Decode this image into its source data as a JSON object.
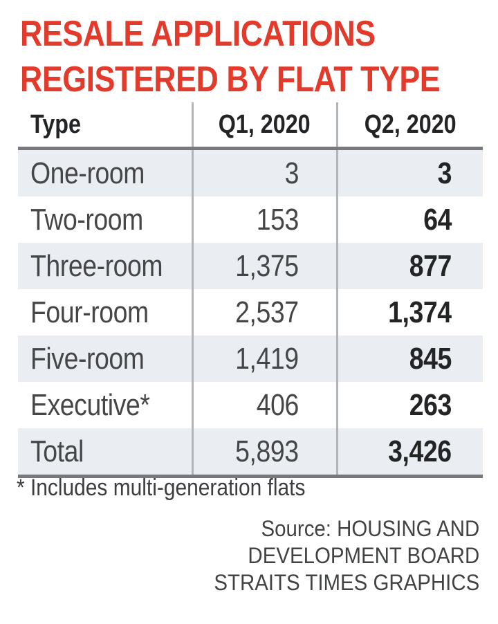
{
  "title": {
    "line1": "RESALE APPLICATIONS",
    "line2": "REGISTERED BY FLAT TYPE",
    "color": "#e23a2b"
  },
  "table": {
    "columns": [
      "Type",
      "Q1, 2020",
      "Q2, 2020"
    ],
    "rows": [
      {
        "type": "One-room",
        "q1": "3",
        "q2": "3"
      },
      {
        "type": "Two-room",
        "q1": "153",
        "q2": "64"
      },
      {
        "type": "Three-room",
        "q1": "1,375",
        "q2": "877"
      },
      {
        "type": "Four-room",
        "q1": "2,537",
        "q2": "1,374"
      },
      {
        "type": "Five-room",
        "q1": "1,419",
        "q2": "845"
      },
      {
        "type": "Executive*",
        "q1": "406",
        "q2": "263"
      },
      {
        "type": "Total",
        "q1": "5,893",
        "q2": "3,426"
      }
    ],
    "stripe_color": "#eaedf2",
    "rule_color": "#77797c",
    "divider_color": "#b2b5b8"
  },
  "footnote": "* Includes multi-generation flats",
  "source": {
    "line1": "Source: HOUSING AND",
    "line2": "DEVELOPMENT BOARD",
    "line3": "STRAITS TIMES GRAPHICS"
  },
  "chart_data": {
    "type": "table",
    "title": "RESALE APPLICATIONS REGISTERED BY FLAT TYPE",
    "columns": [
      "Type",
      "Q1, 2020",
      "Q2, 2020"
    ],
    "categories": [
      "One-room",
      "Two-room",
      "Three-room",
      "Four-room",
      "Five-room",
      "Executive*",
      "Total"
    ],
    "series": [
      {
        "name": "Q1, 2020",
        "values": [
          3,
          153,
          1375,
          2537,
          1419,
          406,
          5893
        ]
      },
      {
        "name": "Q2, 2020",
        "values": [
          3,
          64,
          877,
          1374,
          845,
          263,
          3426
        ]
      }
    ],
    "footnote": "* Includes multi-generation flats",
    "source": "Source: HOUSING AND DEVELOPMENT BOARD STRAITS TIMES GRAPHICS"
  }
}
